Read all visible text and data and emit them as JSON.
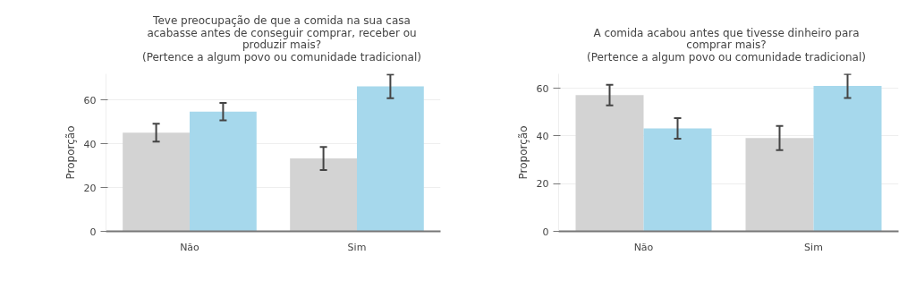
{
  "chart_data": [
    {
      "type": "bar",
      "title": "Teve preocupação de que a comida na sua casa\nacabasse antes de conseguir comprar, receber ou\nproduzir mais?\n(Pertence a algum povo ou comunidade tradicional)",
      "ylabel": "Proporção",
      "categories": [
        "Não",
        "Sim"
      ],
      "series": [
        {
          "color": "#d3d3d3",
          "values": [
            45.1,
            33.3
          ],
          "errors": [
            4.1,
            5.3
          ]
        },
        {
          "color": "#a6d8ec",
          "values": [
            54.7,
            66.3
          ],
          "errors": [
            4.0,
            5.4
          ]
        }
      ],
      "ylim": [
        0,
        72
      ],
      "yticks": [
        0,
        20,
        40,
        60
      ],
      "grid": "y"
    },
    {
      "type": "bar",
      "title": "A comida acabou antes que tivesse dinheiro para\ncomprar mais?\n(Pertence a algum povo ou comunidade tradicional)",
      "ylabel": "Proporção",
      "categories": [
        "Não",
        "Sim"
      ],
      "series": [
        {
          "color": "#d3d3d3",
          "values": [
            57.1,
            39.1
          ],
          "errors": [
            4.3,
            5.1
          ]
        },
        {
          "color": "#a6d8ec",
          "values": [
            43.1,
            60.9
          ],
          "errors": [
            4.3,
            5.0
          ]
        }
      ],
      "ylim": [
        0,
        66
      ],
      "yticks": [
        0,
        20,
        40,
        60
      ],
      "grid": "y"
    }
  ]
}
